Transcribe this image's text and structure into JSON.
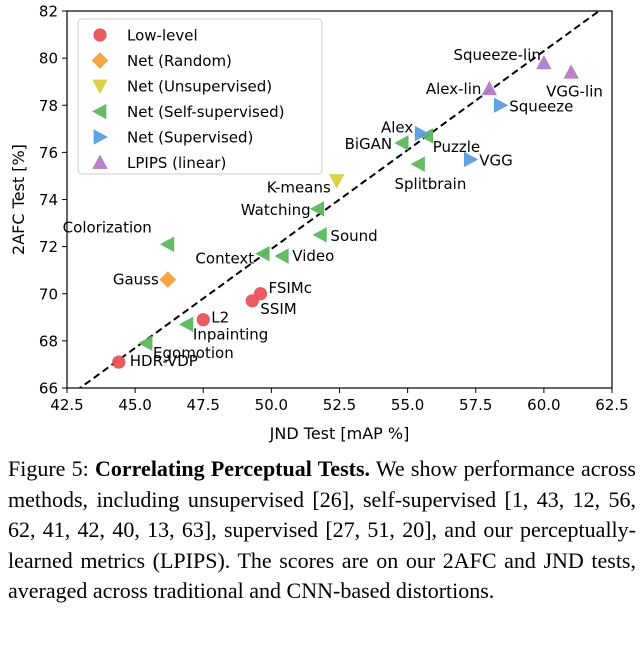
{
  "chart_data": {
    "type": "scatter",
    "xlabel": "JND Test [mAP %]",
    "ylabel": "2AFC Test [%]",
    "xlim": [
      42.5,
      62.5
    ],
    "ylim": [
      66,
      82
    ],
    "xticks": [
      "42.5",
      "45.0",
      "47.5",
      "50.0",
      "52.5",
      "55.0",
      "57.5",
      "60.0",
      "62.5"
    ],
    "yticks": [
      "66",
      "68",
      "70",
      "72",
      "74",
      "76",
      "78",
      "80",
      "82"
    ],
    "grid": false,
    "legend_position": "top-left",
    "reference_line": {
      "style": "dashed",
      "from": [
        42.5,
        65.6
      ],
      "to": [
        62.5,
        82.4
      ]
    },
    "series": [
      {
        "name": "Low-level",
        "marker": "circle",
        "color": "#e8545a",
        "points": [
          {
            "label": "HDR-VDP",
            "x": 44.4,
            "y": 67.1
          },
          {
            "label": "L2",
            "x": 47.5,
            "y": 68.9
          },
          {
            "label": "SSIM",
            "x": 49.3,
            "y": 69.7
          },
          {
            "label": "FSIMc",
            "x": 49.6,
            "y": 70.0
          }
        ]
      },
      {
        "name": "Net (Random)",
        "marker": "diamond",
        "color": "#f5a03c",
        "points": [
          {
            "label": "Gauss",
            "x": 46.2,
            "y": 70.6
          }
        ]
      },
      {
        "name": "Net (Unsupervised)",
        "marker": "triangle-down",
        "color": "#d9cf3f",
        "points": [
          {
            "label": "K-means",
            "x": 52.4,
            "y": 74.8
          }
        ]
      },
      {
        "name": "Net (Self-supervised)",
        "marker": "triangle-left",
        "color": "#5db85f",
        "points": [
          {
            "label": "Egomotion",
            "x": 45.4,
            "y": 67.9
          },
          {
            "label": "Inpainting",
            "x": 46.9,
            "y": 68.7
          },
          {
            "label": "Colorization",
            "x": 46.2,
            "y": 72.1
          },
          {
            "label": "Context",
            "x": 49.7,
            "y": 71.7
          },
          {
            "label": "Video",
            "x": 50.4,
            "y": 71.6
          },
          {
            "label": "Sound",
            "x": 51.8,
            "y": 72.5
          },
          {
            "label": "Watching",
            "x": 51.7,
            "y": 73.6
          },
          {
            "label": "BiGAN",
            "x": 54.8,
            "y": 76.4
          },
          {
            "label": "Puzzle",
            "x": 55.7,
            "y": 76.7
          },
          {
            "label": "Splitbrain",
            "x": 55.4,
            "y": 75.5
          }
        ]
      },
      {
        "name": "Net (Supervised)",
        "marker": "triangle-right",
        "color": "#5b9fdc",
        "points": [
          {
            "label": "Alex",
            "x": 55.5,
            "y": 76.8
          },
          {
            "label": "Squeeze",
            "x": 58.4,
            "y": 78.0
          },
          {
            "label": "VGG",
            "x": 57.3,
            "y": 75.7
          }
        ]
      },
      {
        "name": "LPIPS (linear)",
        "marker": "triangle-up",
        "color": "#b47cc4",
        "points": [
          {
            "label": "Alex-lin",
            "x": 58.0,
            "y": 78.7
          },
          {
            "label": "Squeeze-lin",
            "x": 60.0,
            "y": 79.8
          },
          {
            "label": "VGG-lin",
            "x": 61.0,
            "y": 79.4
          }
        ]
      }
    ]
  },
  "caption": {
    "figure_label": "Figure 5: ",
    "bold_title": "Correlating Perceptual Tests.",
    "text": " We show performance across methods, including unsupervised [26], self-supervised [1, 43, 12, 56, 62, 41, 42, 40, 13, 63], supervised [27, 51, 20], and our perceptually-learned metrics (LPIPS). The scores are on our 2AFC and JND tests, averaged across traditional and CNN-based distortions."
  }
}
